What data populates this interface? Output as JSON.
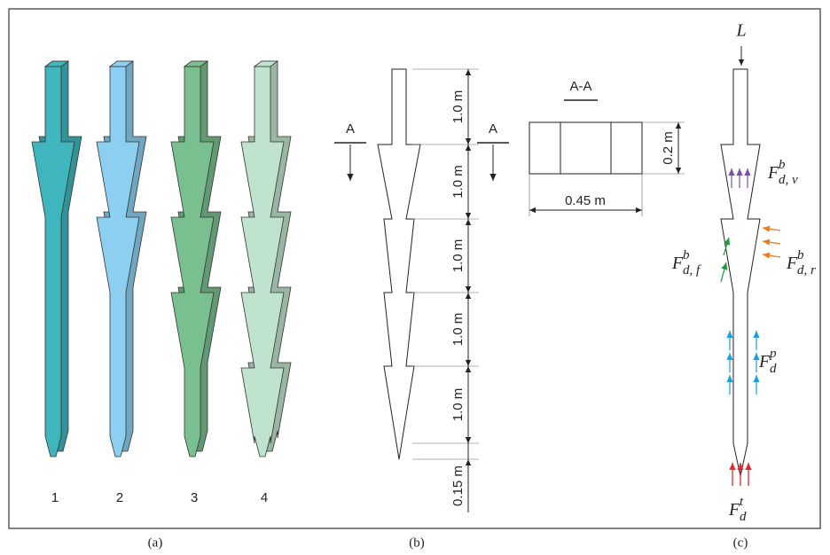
{
  "panels": {
    "a": {
      "caption": "(a)",
      "pile_labels": [
        "1",
        "2",
        "3",
        "4"
      ]
    },
    "b": {
      "caption": "(b)",
      "section_marks": [
        "A",
        "A"
      ],
      "dimensions": [
        "1.0 m",
        "1.0 m",
        "1.0 m",
        "1.0 m",
        "1.0 m",
        "0.15 m"
      ]
    },
    "section": {
      "title": "A-A",
      "width": "0.45 m",
      "height": "0.2 m"
    },
    "c": {
      "caption": "(c)",
      "load": "L",
      "forces": [
        {
          "symbol": "F",
          "sub": "d, v",
          "sup": "b"
        },
        {
          "symbol": "F",
          "sub": "d, f",
          "sup": "b"
        },
        {
          "symbol": "F",
          "sub": "d, r",
          "sup": "b"
        },
        {
          "symbol": "F",
          "sub": "d",
          "sup": "p"
        },
        {
          "symbol": "F",
          "sub": "d",
          "sup": "t"
        }
      ]
    }
  }
}
